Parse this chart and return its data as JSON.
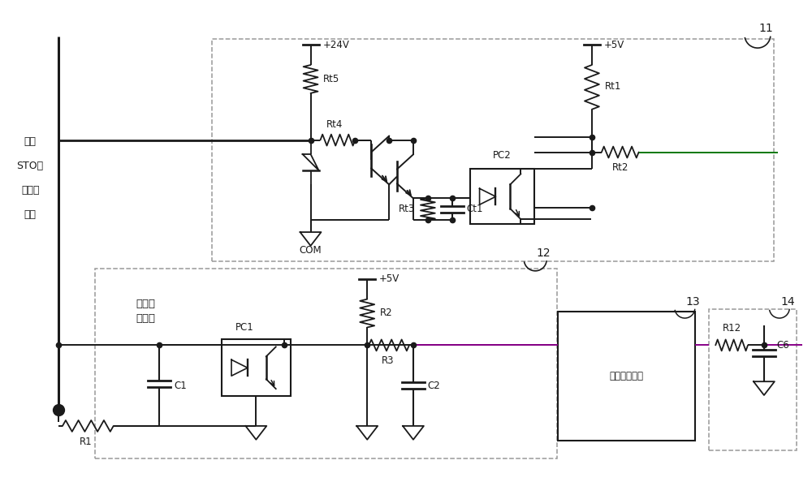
{
  "bg_color": "#ffffff",
  "lc": "#1a1a1a",
  "dc": "#999999",
  "green": "#007700",
  "purple": "#880088",
  "label11": "11",
  "label12": "12",
  "label13": "13",
  "label14": "14",
  "lbl_pc2": "PC2",
  "lbl_rt1": "Rt1",
  "lbl_rt2": "Rt2",
  "lbl_rt3": "Rt3",
  "lbl_rt4": "Rt4",
  "lbl_rt5": "Rt5",
  "lbl_ct1": "Ct1",
  "lbl_pc1": "PC1",
  "lbl_r1": "R1",
  "lbl_r2": "R2",
  "lbl_r3": "R3",
  "lbl_c1": "C1",
  "lbl_c2": "C2",
  "lbl_r12": "R12",
  "lbl_c6": "C6",
  "lbl_24v": "+24V",
  "lbl_5v_top": "+5V",
  "lbl_5v_bot": "+5V",
  "lbl_com": "COM",
  "lbl_coupler": "第一光\n耦电路",
  "lbl_shaper": "第一整形电路",
  "lbl_title_line1": "第一",
  "lbl_title_line2": "STO功",
  "lbl_title_line3": "能触发",
  "lbl_title_line4": "信号"
}
